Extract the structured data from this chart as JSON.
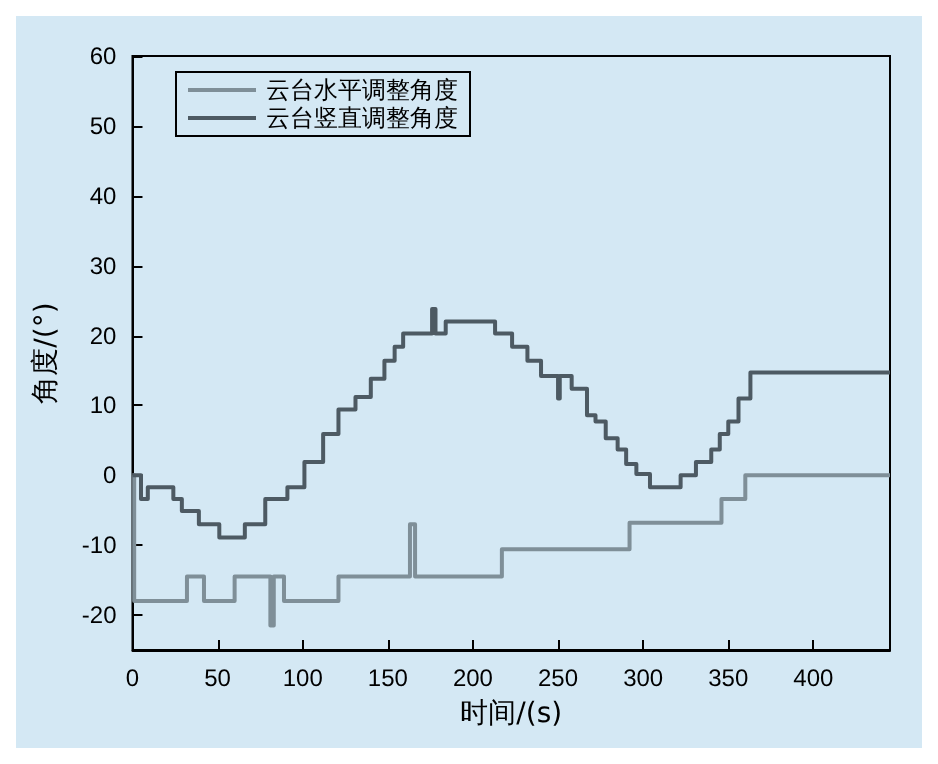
{
  "chart_data": {
    "type": "step",
    "xlabel": "时间/(s)",
    "ylabel": "角度/(°)",
    "xlim": [
      0,
      445
    ],
    "xticks": [
      0,
      50,
      100,
      150,
      200,
      250,
      300,
      350,
      400
    ],
    "ylim": [
      -25,
      60
    ],
    "yticks": [
      -20,
      -10,
      0,
      10,
      20,
      30,
      40,
      50,
      60
    ],
    "grid": false,
    "legend": "top left",
    "marker": "none",
    "line_style": "solid",
    "series": [
      {
        "name": "云台水平调整角度",
        "color": "#7f8f98",
        "x": [
          0,
          1,
          32,
          42,
          60,
          81,
          83,
          89,
          121,
          163,
          166,
          217,
          292,
          346,
          360,
          445
        ],
        "values": [
          0,
          -18,
          -14.5,
          -18,
          -14.5,
          -21.5,
          -14.5,
          -18,
          -14.5,
          -7,
          -14.5,
          -10.6,
          -6.8,
          -3.4,
          0,
          0
        ]
      },
      {
        "name": "云台竖直调整角度",
        "color": "#4d5a63",
        "x": [
          0,
          5,
          9,
          24,
          29,
          39,
          51,
          66,
          78,
          91,
          101,
          112,
          121,
          131,
          140,
          148,
          154,
          159,
          176,
          178,
          184,
          213,
          223,
          232,
          240,
          250,
          251,
          258,
          267,
          272,
          278,
          285,
          290,
          296,
          304,
          322,
          331,
          340,
          345,
          350,
          356,
          363,
          445
        ],
        "values": [
          0,
          -3.4,
          -1.7,
          -3.4,
          -5.1,
          -7,
          -8.9,
          -7,
          -3.4,
          -1.7,
          1.9,
          5.9,
          9.4,
          11.2,
          13.8,
          16.4,
          18.4,
          20.3,
          23.8,
          20.3,
          22,
          20.3,
          18.4,
          16.4,
          14.2,
          11,
          14.2,
          12.4,
          8.6,
          7.7,
          5.3,
          3.7,
          1.6,
          0.2,
          -1.7,
          0,
          1.9,
          3.7,
          5.9,
          7.7,
          11,
          14.7,
          14.7
        ]
      }
    ]
  }
}
